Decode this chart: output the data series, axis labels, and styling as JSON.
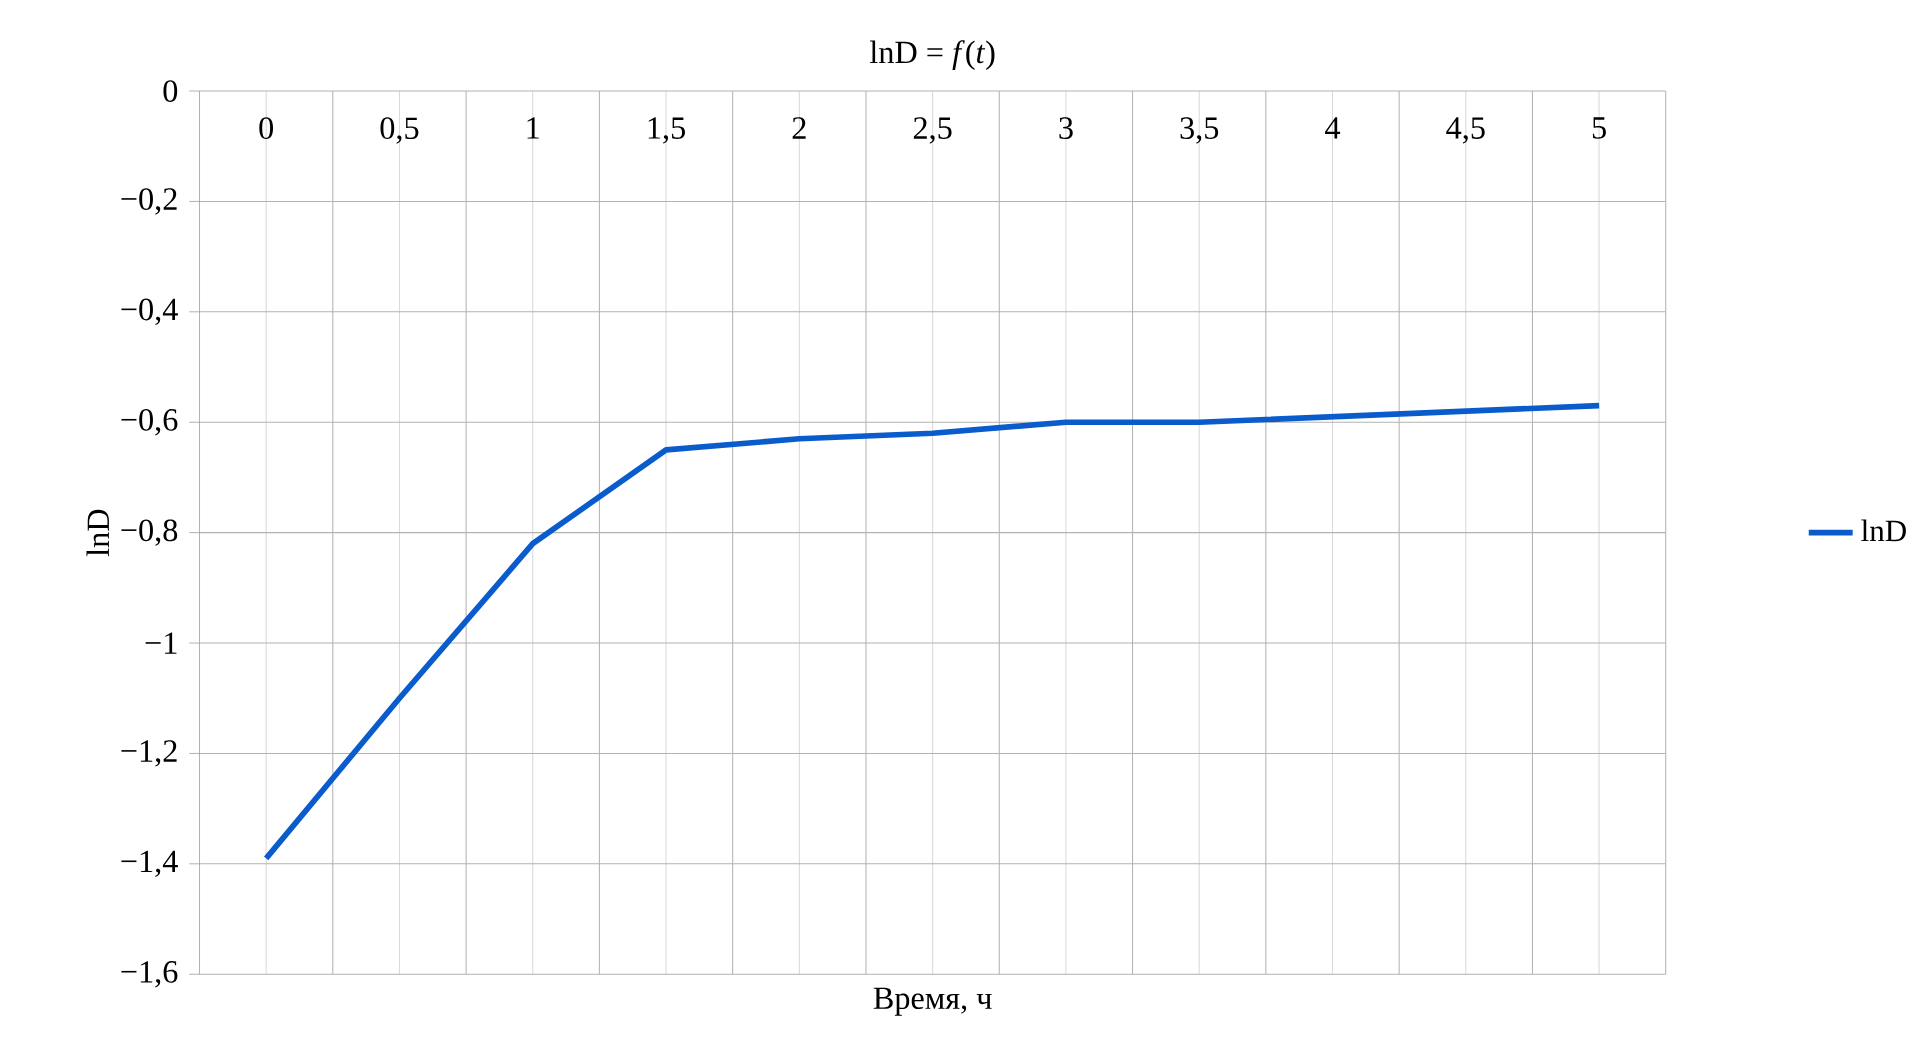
{
  "chart_data": {
    "type": "line",
    "title": "lnD = *f*(*t*)",
    "xlabel": "Время, ч",
    "ylabel": "lnD",
    "categories": [
      "0",
      "0,5",
      "1",
      "1,5",
      "2",
      "2,5",
      "3",
      "3,5",
      "4",
      "4,5",
      "5"
    ],
    "series": [
      {
        "name": "lnD",
        "color": "#0a5ccc",
        "values": [
          -1.39,
          -1.1,
          -0.82,
          -0.65,
          -0.63,
          -0.62,
          -0.6,
          -0.6,
          -0.59,
          -0.58,
          -0.57
        ]
      }
    ],
    "ylim": [
      -1.6,
      0
    ],
    "yticks": [
      {
        "value": -1.6,
        "label": "−1,6"
      },
      {
        "value": -1.4,
        "label": "−1,4"
      },
      {
        "value": -1.2,
        "label": "−1,2"
      },
      {
        "value": -1,
        "label": "−1"
      },
      {
        "value": -0.8,
        "label": "−0,8"
      },
      {
        "value": -0.6,
        "label": "−0,6"
      },
      {
        "value": -0.4,
        "label": "−0,4"
      },
      {
        "value": -0.2,
        "label": "−0,2"
      },
      {
        "value": 0,
        "label": "0"
      }
    ],
    "grid": true,
    "legend": "right",
    "marker": "none",
    "line_style": "solid"
  }
}
